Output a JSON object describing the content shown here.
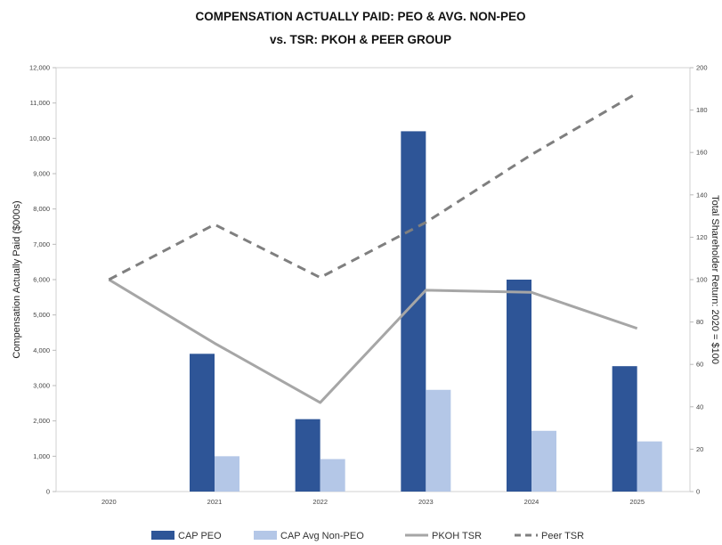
{
  "chart_data": {
    "type": "bar",
    "title": "COMPENSATION ACTUALLY PAID: PEO & AVG. NON-PEO",
    "subtitle": "vs. TSR: PKOH & PEER GROUP",
    "categories": [
      "2020",
      "2021",
      "2022",
      "2023",
      "2024",
      "2025"
    ],
    "ylabel": "Compensation Actually Paid ($000s)",
    "y2label": "Total Shareholder Return: 2020 = $100",
    "ylim": [
      0,
      12000
    ],
    "y2lim": [
      0,
      200
    ],
    "yticks": [
      "0",
      "1,000",
      "2,000",
      "3,000",
      "4,000",
      "5,000",
      "6,000",
      "7,000",
      "8,000",
      "9,000",
      "10,000",
      "11,000",
      "12,000"
    ],
    "y2ticks": [
      "0",
      "20",
      "40",
      "60",
      "80",
      "100",
      "120",
      "140",
      "160",
      "180",
      "200"
    ],
    "grid": false,
    "legend_position": "bottom",
    "series": [
      {
        "name": "CAP PEO",
        "type": "bar",
        "axis": "left",
        "color": "#2e5597",
        "values": [
          null,
          3900,
          2050,
          10200,
          6000,
          3550
        ]
      },
      {
        "name": "CAP Avg Non-PEO",
        "type": "bar",
        "axis": "left",
        "color": "#b4c7e7",
        "values": [
          null,
          1000,
          920,
          2880,
          1720,
          1420
        ]
      },
      {
        "name": "PKOH TSR",
        "type": "line",
        "axis": "right",
        "color": "#a6a6a6",
        "dash": "solid",
        "values": [
          100,
          70,
          42,
          95,
          94,
          77
        ]
      },
      {
        "name": "Peer TSR",
        "type": "line",
        "axis": "right",
        "color": "#7f7f7f",
        "dash": "dashed",
        "values": [
          100,
          126,
          101,
          127,
          159,
          188
        ]
      }
    ]
  }
}
